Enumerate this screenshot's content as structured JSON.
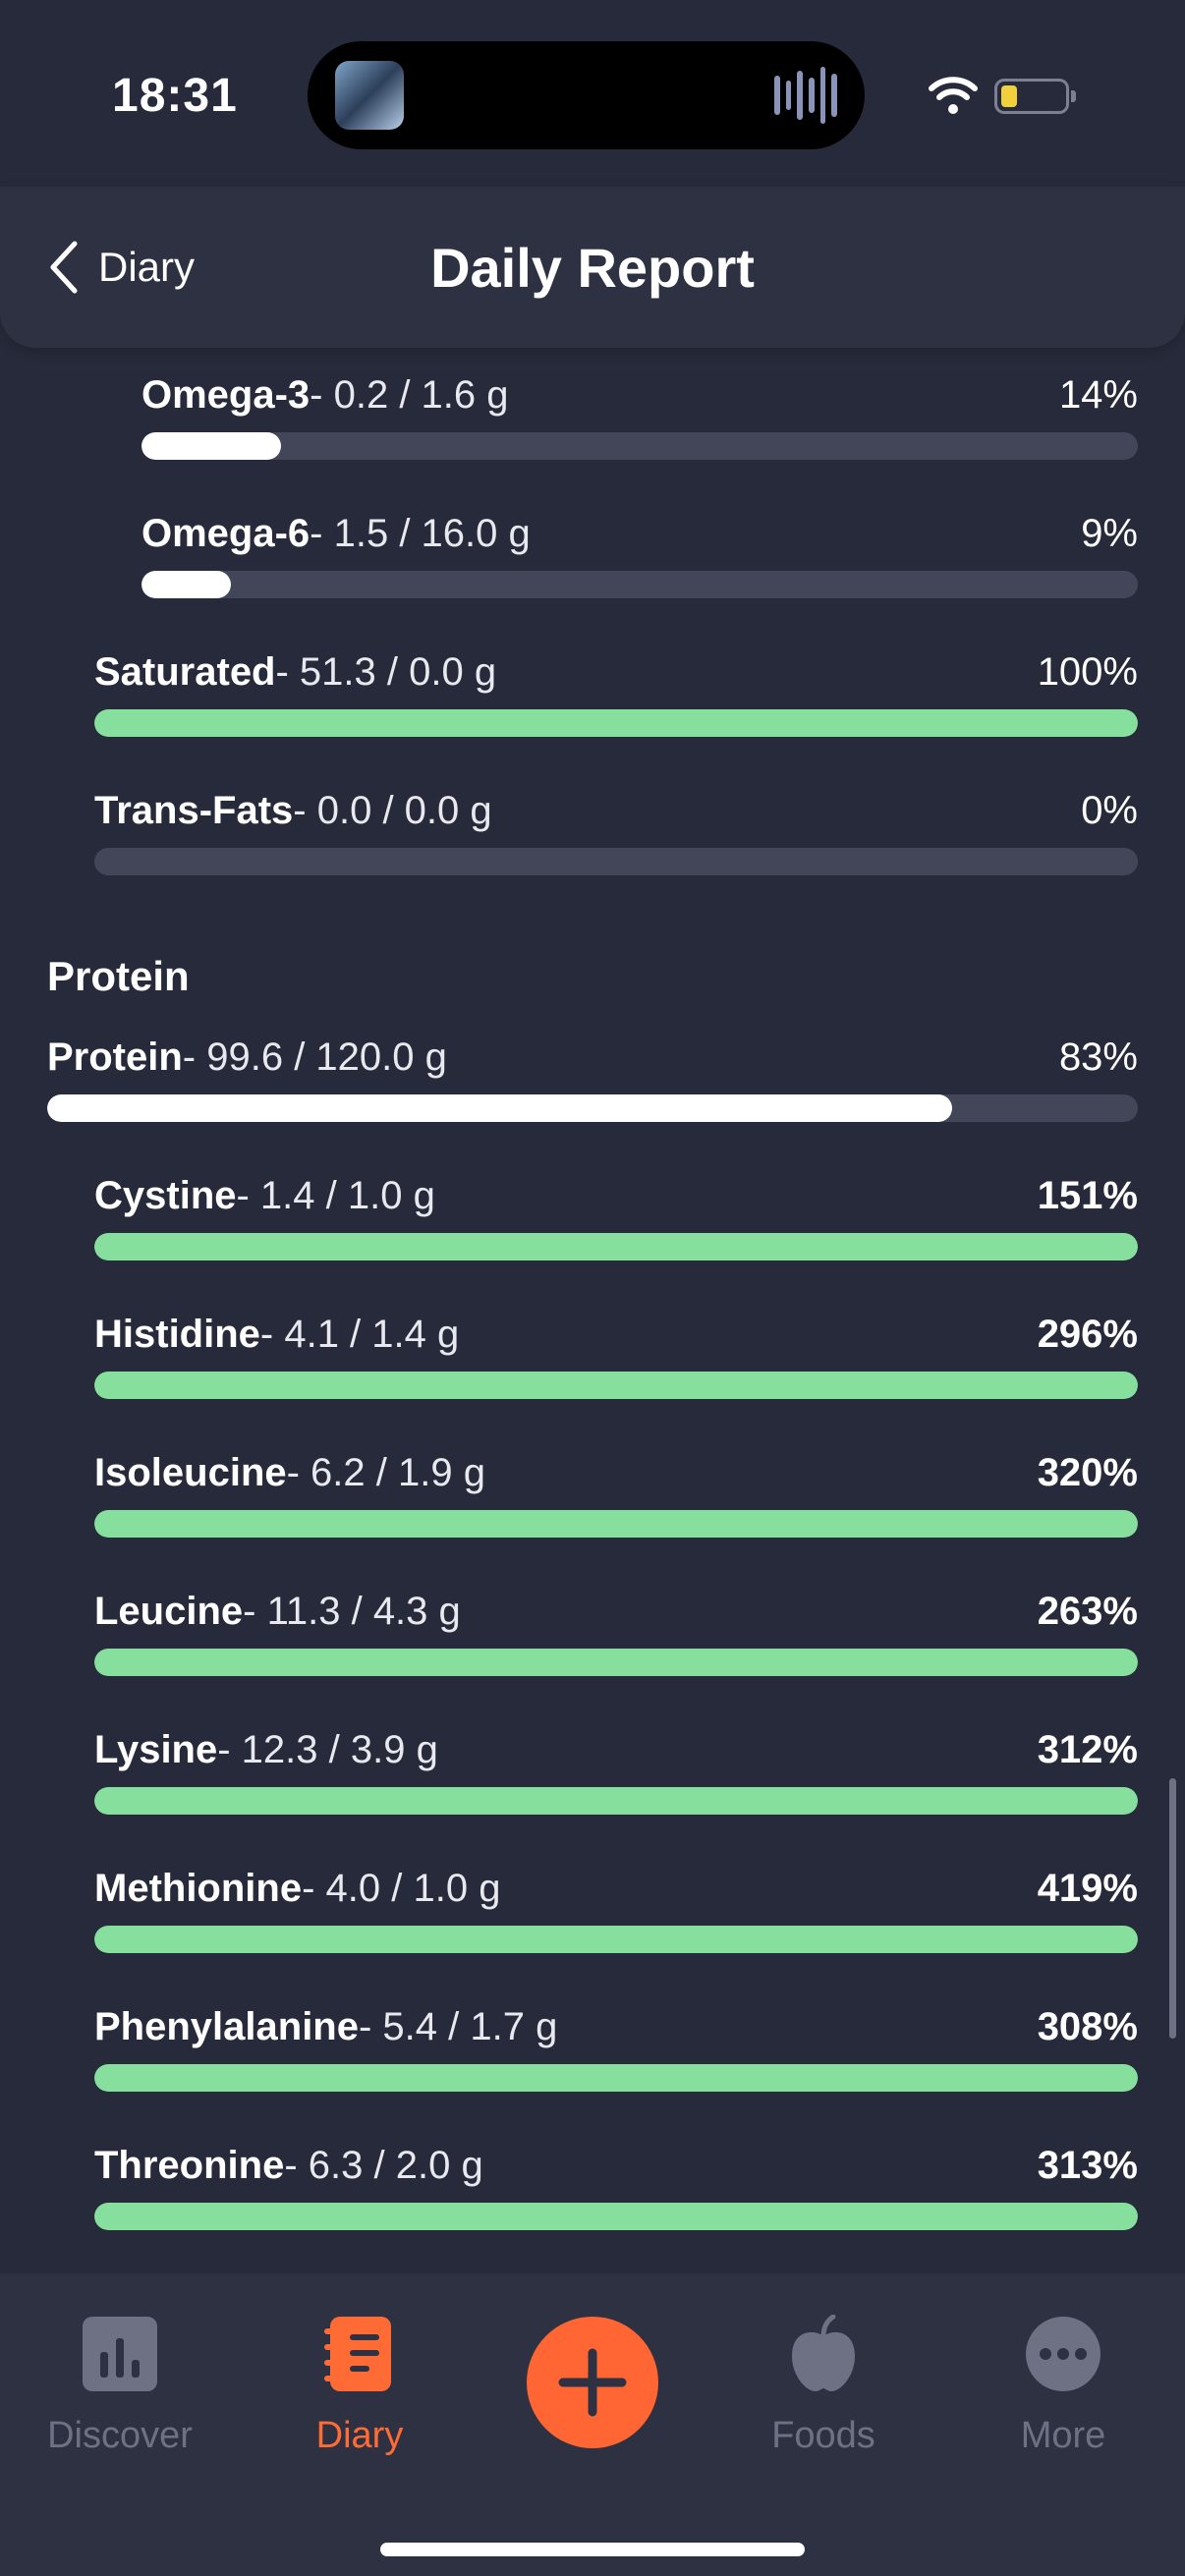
{
  "status_bar": {
    "time": "18:31",
    "battery_level": 0.18
  },
  "header": {
    "back_label": "Diary",
    "title": "Daily Report"
  },
  "fats": [
    {
      "name": "Omega-3",
      "amount": "- 0.2 / 1.6 g",
      "percent": "14%",
      "fill": 0.14,
      "color": "#ffffff",
      "indent": 1
    },
    {
      "name": "Omega-6",
      "amount": "- 1.5 / 16.0 g",
      "percent": "9%",
      "fill": 0.09,
      "color": "#ffffff",
      "indent": 1
    },
    {
      "name": "Saturated",
      "amount": "- 51.3 / 0.0 g",
      "percent": "100%",
      "fill": 1.0,
      "color": "#86df9d",
      "indent": 0
    },
    {
      "name": "Trans-Fats",
      "amount": "- 0.0 / 0.0 g",
      "percent": "0%",
      "fill": 0.0,
      "color": "#ffffff",
      "indent": 0
    }
  ],
  "protein_section": {
    "title": "Protein",
    "total": {
      "name": "Protein",
      "amount": "- 99.6 / 120.0 g",
      "percent": "83%",
      "fill": 0.83,
      "color": "#ffffff"
    },
    "amino_acids": [
      {
        "name": "Cystine",
        "amount": "- 1.4 / 1.0 g",
        "percent": "151%",
        "fill": 1.0,
        "color": "#86df9d"
      },
      {
        "name": "Histidine",
        "amount": "- 4.1 / 1.4 g",
        "percent": "296%",
        "fill": 1.0,
        "color": "#86df9d"
      },
      {
        "name": "Isoleucine",
        "amount": "- 6.2 / 1.9 g",
        "percent": "320%",
        "fill": 1.0,
        "color": "#86df9d"
      },
      {
        "name": "Leucine",
        "amount": "- 11.3 / 4.3 g",
        "percent": "263%",
        "fill": 1.0,
        "color": "#86df9d"
      },
      {
        "name": "Lysine",
        "amount": "- 12.3 / 3.9 g",
        "percent": "312%",
        "fill": 1.0,
        "color": "#86df9d"
      },
      {
        "name": "Methionine",
        "amount": "- 4.0 / 1.0 g",
        "percent": "419%",
        "fill": 1.0,
        "color": "#86df9d"
      },
      {
        "name": "Phenylalanine",
        "amount": "- 5.4 / 1.7 g",
        "percent": "308%",
        "fill": 1.0,
        "color": "#86df9d"
      },
      {
        "name": "Threonine",
        "amount": "- 6.3 / 2.0 g",
        "percent": "313%",
        "fill": 1.0,
        "color": "#86df9d"
      }
    ]
  },
  "tab_bar": {
    "tabs": [
      {
        "label": "Discover",
        "icon": "bar-chart-icon",
        "active": false
      },
      {
        "label": "Diary",
        "icon": "notebook-icon",
        "active": true
      },
      {
        "label": "Foods",
        "icon": "apple-icon",
        "active": false
      },
      {
        "label": "More",
        "icon": "more-dots-icon",
        "active": false
      }
    ],
    "add_icon": "plus-icon",
    "accent_color": "#ff6633"
  }
}
